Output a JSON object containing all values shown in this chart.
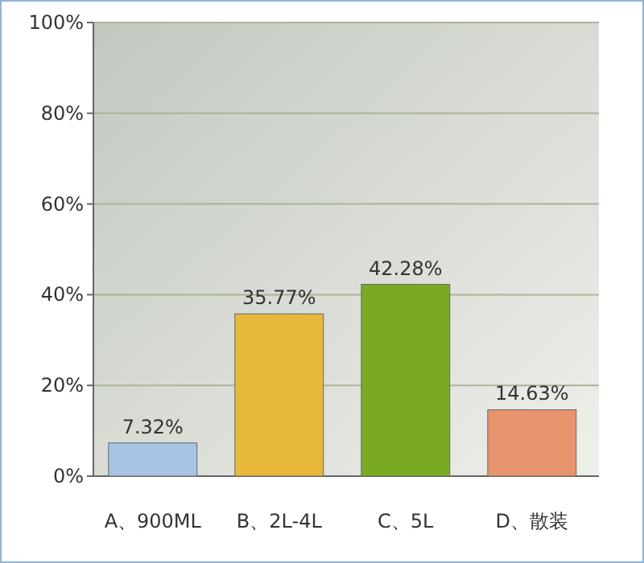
{
  "chart_data": {
    "type": "bar",
    "categories": [
      "A、900ML",
      "B、2L-4L",
      "C、5L",
      "D、散装"
    ],
    "values": [
      7.32,
      35.77,
      42.28,
      14.63
    ],
    "colors": [
      "#a8c4e4",
      "#e8b83a",
      "#7aaa22",
      "#e8946c"
    ],
    "value_labels": [
      "7.32%",
      "35.77%",
      "42.28%",
      "14.63%"
    ],
    "ylim": [
      0,
      100
    ],
    "yticks": [
      {
        "value": 0,
        "label": "0%"
      },
      {
        "value": 20,
        "label": "20%"
      },
      {
        "value": 40,
        "label": "40%"
      },
      {
        "value": 60,
        "label": "60%"
      },
      {
        "value": 80,
        "label": "80%"
      },
      {
        "value": 100,
        "label": "100%"
      }
    ],
    "grid": "y"
  }
}
